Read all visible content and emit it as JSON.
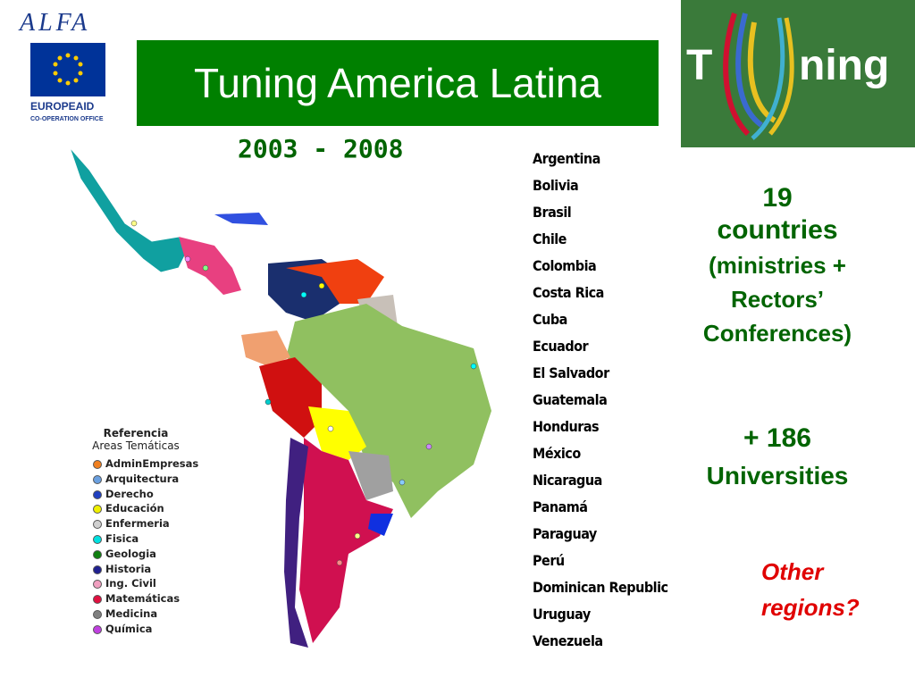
{
  "logos": {
    "alfa": "ALFA",
    "europeaid": "EUROPEAID",
    "office": "CO-OPERATION OFFICE",
    "tuning_t": "T",
    "tuning_rest": "ning"
  },
  "header": {
    "title": "Tuning America Latina",
    "period": "2003 - 2008"
  },
  "countries": [
    "Argentina",
    "Bolivia",
    "Brasil",
    "Chile",
    "Colombia",
    "Costa Rica",
    "Cuba",
    "Ecuador",
    "El Salvador",
    "Guatemala",
    "Honduras",
    "México",
    "Nicaragua",
    "Panamá",
    "Paraguay",
    "Perú",
    "Dominican Republic",
    "Uruguay",
    "Venezuela"
  ],
  "summary": {
    "countries": [
      "19",
      "countries",
      "(ministries +",
      "Rectors’",
      "Conferences)"
    ],
    "universities": [
      "+ 186",
      "Universities"
    ],
    "question": [
      "Other",
      "regions?"
    ]
  },
  "legend": {
    "title": "Referencia",
    "subtitle": "Areas Temáticas",
    "items": [
      "AdminEmpresas",
      "Arquitectura",
      "Derecho",
      "Educación",
      "Enfermeria",
      "Fisica",
      "Geologia",
      "Historia",
      "Ing. Civil",
      "Matemáticas",
      "Medicina",
      "Química"
    ]
  }
}
